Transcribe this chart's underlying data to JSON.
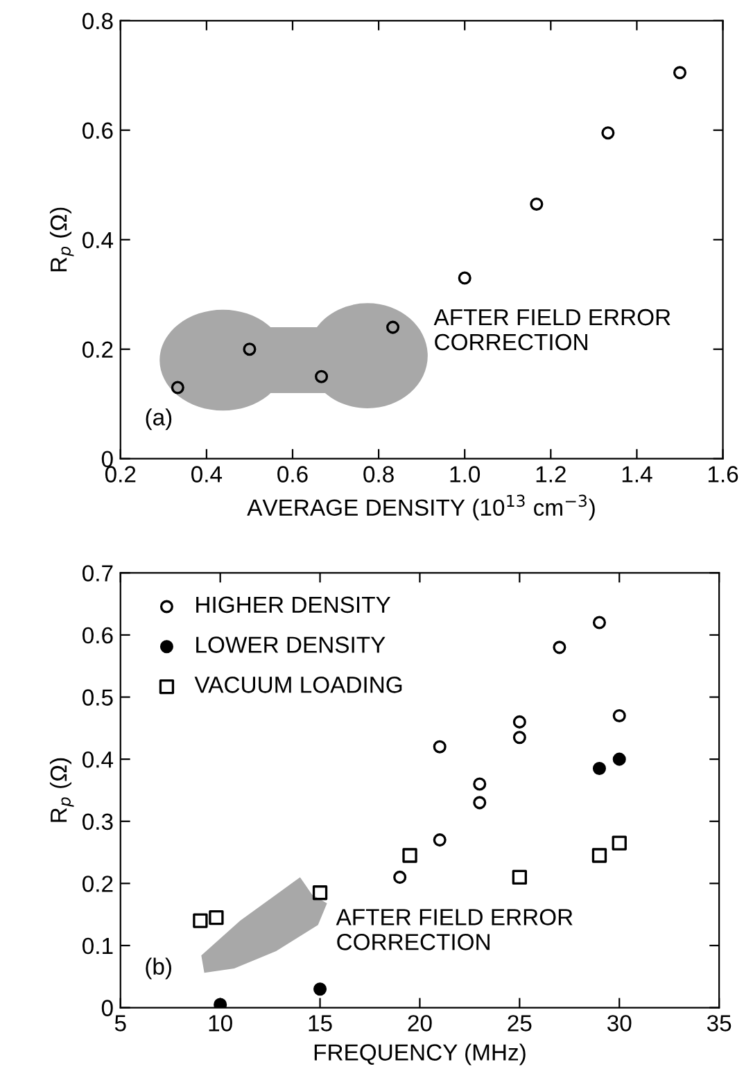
{
  "chart_data": [
    {
      "type": "scatter",
      "xlabel": "AVERAGE DENSITY (10$^{13}$ cm$^{−3}$)",
      "ylabel": "R$_{p}$ (Ω)",
      "xlim": [
        0.2,
        1.6
      ],
      "ylim": [
        0,
        0.8
      ],
      "xticks": [
        0.2,
        0.4,
        0.6,
        0.8,
        {
          "value": 1.0,
          "label": "1.0"
        },
        1.2,
        1.4,
        1.6
      ],
      "yticks": [
        0,
        0.2,
        0.4,
        0.6,
        0.8
      ],
      "grid": false,
      "legend": false,
      "marker": "circle",
      "annotations": [
        "AFTER FIELD ERROR\nCORRECTION",
        "(a)"
      ],
      "series": [
        {
          "color": "#000000",
          "x": [
            0.333,
            0.5,
            0.667,
            0.833,
            1.0,
            1.167,
            1.333,
            1.5
          ],
          "values": [
            0.13,
            0.2,
            0.15,
            0.24,
            0.33,
            0.465,
            0.595,
            0.705
          ]
        }
      ]
    },
    {
      "type": "scatter",
      "xlabel": "FREQUENCY (MHz)",
      "ylabel": "R$_{p}$ (Ω)",
      "xlim": [
        5,
        35
      ],
      "ylim": [
        0,
        0.7
      ],
      "xticks": [
        5,
        10,
        15,
        20,
        25,
        30,
        35
      ],
      "yticks": [
        0,
        0.1,
        0.2,
        0.3,
        0.4,
        0.5,
        0.6,
        0.7
      ],
      "grid": false,
      "legend": "top left",
      "annotations": [
        "AFTER FIELD ERROR\nCORRECTION",
        "(b)"
      ],
      "series": [
        {
          "name": "HIGHER DENSITY",
          "color": "#000000",
          "marker": "circle",
          "x": [
            19,
            21,
            21,
            23,
            23,
            25,
            25,
            27,
            29,
            30
          ],
          "values": [
            0.21,
            0.27,
            0.42,
            0.33,
            0.36,
            0.435,
            0.46,
            0.58,
            0.62,
            0.47
          ]
        },
        {
          "name": "LOWER DENSITY",
          "color": "#000000",
          "marker": "circle",
          "x": [
            10,
            15,
            29,
            30
          ],
          "values": [
            0.005,
            0.03,
            0.385,
            0.4
          ]
        },
        {
          "name": "VACUUM LOADING",
          "color": "#000000",
          "marker": "square",
          "x": [
            9,
            9.8,
            15,
            19.5,
            25,
            29,
            30
          ],
          "values": [
            0.14,
            0.145,
            0.185,
            0.245,
            0.21,
            0.245,
            0.265
          ]
        }
      ]
    }
  ]
}
